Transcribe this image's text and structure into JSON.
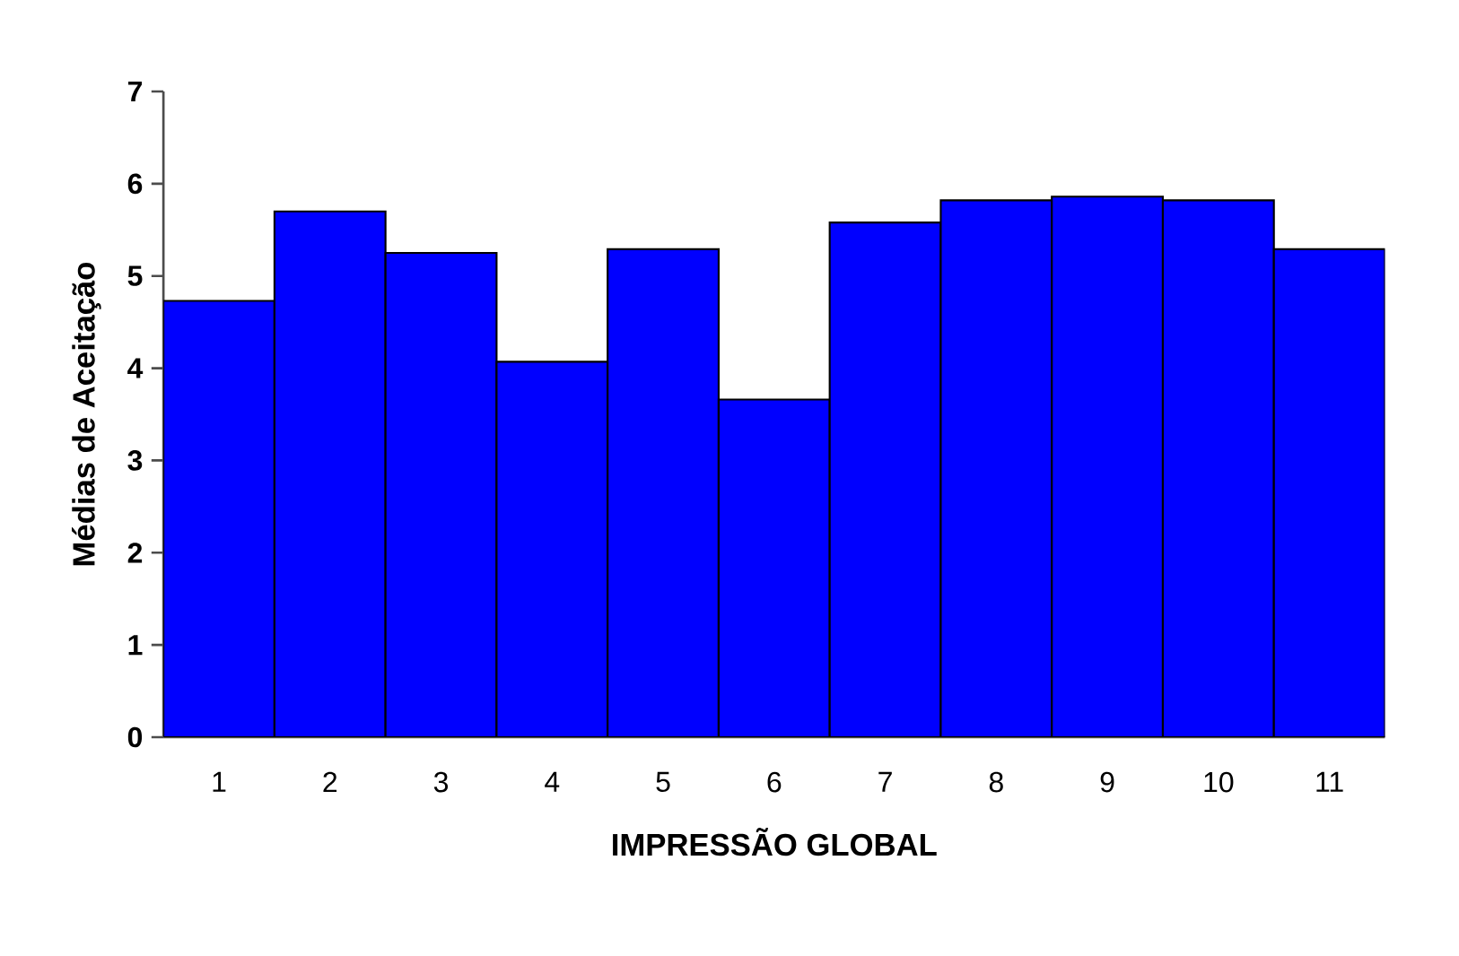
{
  "chart_data": {
    "type": "bar",
    "xlabel": "IMPRESSÃO GLOBAL",
    "ylabel": "Médias de Aceitação",
    "categories": [
      "1",
      "2",
      "3",
      "4",
      "5",
      "6",
      "7",
      "8",
      "9",
      "10",
      "11"
    ],
    "values": [
      4.73,
      5.7,
      5.25,
      4.07,
      5.29,
      3.66,
      5.58,
      5.82,
      5.86,
      5.82,
      5.29
    ],
    "color": "#0000ff",
    "ylim": [
      0,
      7
    ],
    "yticks": [
      0,
      1,
      2,
      3,
      4,
      5,
      6,
      7
    ]
  }
}
